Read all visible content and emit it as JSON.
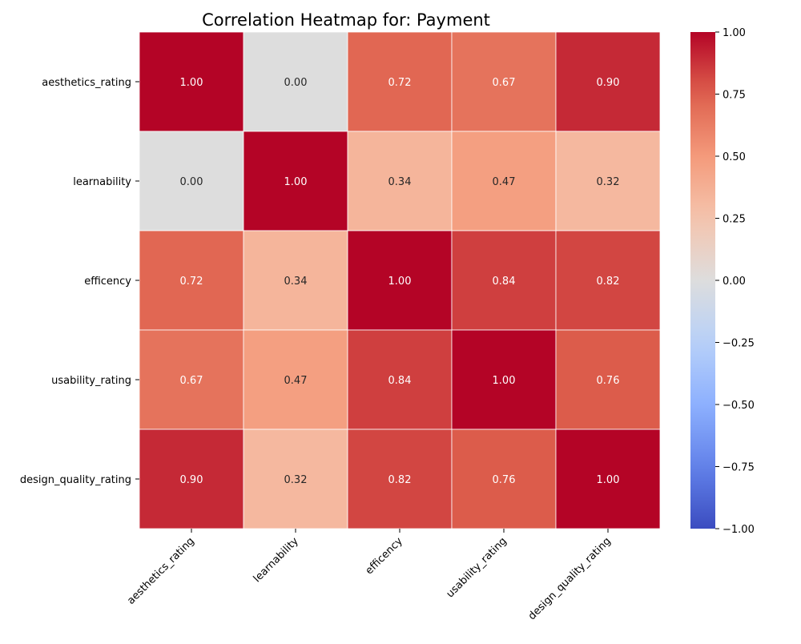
{
  "chart_data": {
    "type": "heatmap",
    "title": "Correlation Heatmap for: Payment",
    "rows": [
      "aesthetics_rating",
      "learnability",
      "efficency",
      "usability_rating",
      "design_quality_rating"
    ],
    "columns": [
      "aesthetics_rating",
      "learnability",
      "efficency",
      "usability_rating",
      "design_quality_rating"
    ],
    "values": [
      [
        1.0,
        0.0,
        0.72,
        0.67,
        0.9
      ],
      [
        0.0,
        1.0,
        0.34,
        0.47,
        0.32
      ],
      [
        0.72,
        0.34,
        1.0,
        0.84,
        0.82
      ],
      [
        0.67,
        0.47,
        0.84,
        1.0,
        0.76
      ],
      [
        0.9,
        0.32,
        0.82,
        0.76,
        1.0
      ]
    ],
    "value_format": "2 decimals",
    "colormap": "coolwarm",
    "vmin": -1.0,
    "vmax": 1.0,
    "colorbar_ticks": [
      "1.00",
      "0.75",
      "0.50",
      "0.25",
      "0.00",
      "−0.25",
      "−0.50",
      "−0.75",
      "−1.00"
    ],
    "grid_lines": true,
    "grid_line_color": "#ffffff"
  }
}
